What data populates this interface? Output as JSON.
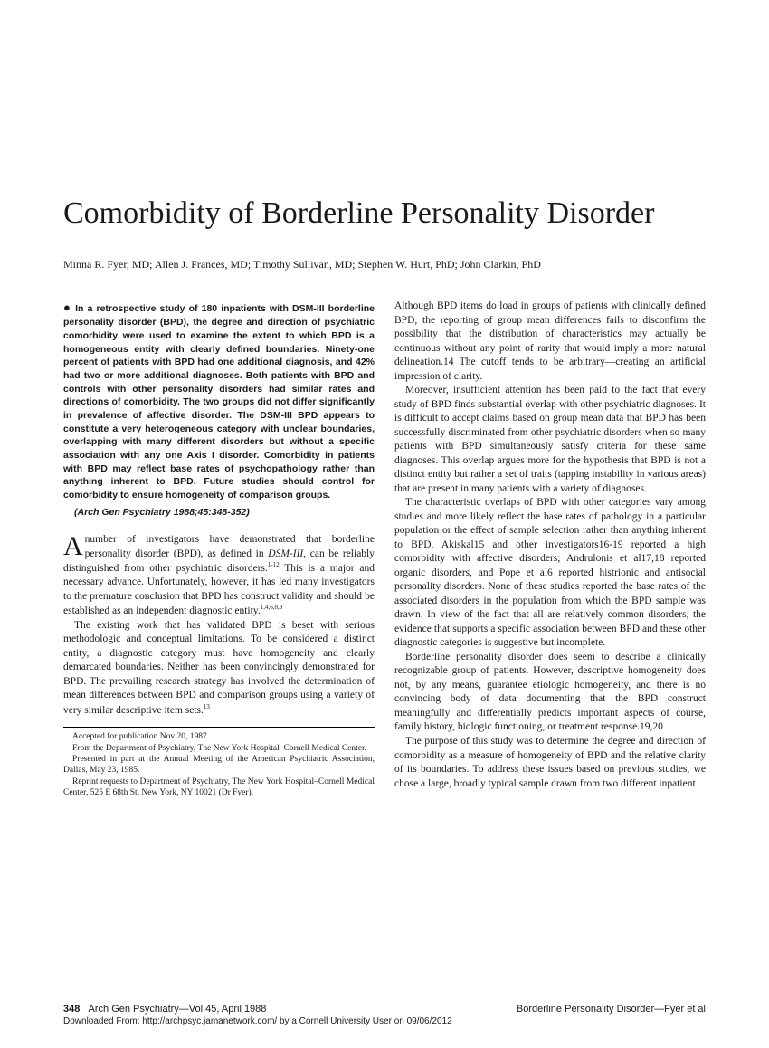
{
  "title": "Comorbidity of Borderline Personality Disorder",
  "authors": "Minna R. Fyer, MD; Allen J. Frances, MD; Timothy Sullivan, MD; Stephen W. Hurt, PhD; John Clarkin, PhD",
  "abstract": "In a retrospective study of 180 inpatients with DSM-III borderline personality disorder (BPD), the degree and direction of psychiatric comorbidity were used to examine the extent to which BPD is a homogeneous entity with clearly defined boundaries. Ninety-one percent of patients with BPD had one additional diagnosis, and 42% had two or more additional diagnoses. Both patients with BPD and controls with other personality disorders had similar rates and directions of comorbidity. The two groups did not differ significantly in prevalence of affective disorder. The DSM-III BPD appears to constitute a very heterogeneous category with unclear boundaries, overlapping with many different disorders but without a specific association with any one Axis I disorder. Comorbidity in patients with BPD may reflect base rates of psychopathology rather than anything inherent to BPD. Future studies should control for comorbidity to ensure homogeneity of comparison groups.",
  "citation": "(Arch Gen Psychiatry 1988;45:348-352)",
  "left_paras": {
    "p1a": "number of investigators have demonstrated that borderline personality disorder (BPD), as defined in ",
    "p1b": "DSM-III",
    "p1c": ", can be reliably distinguished from other psychiatric disorders.",
    "p1d": " This is a major and necessary advance. Unfortunately, however, it has led many investigators to the premature conclusion that BPD has construct validity and should be established as an independent diagnostic entity.",
    "p2": "The existing work that has validated BPD is beset with serious methodologic and conceptual limitations. To be considered a distinct entity, a diagnostic category must have homogeneity and clearly demarcated boundaries. Neither has been convincingly demonstrated for BPD. The prevailing research strategy has involved the determination of mean differences between BPD and comparison groups using a variety of very similar descriptive item sets."
  },
  "right_paras": {
    "p1": "Although BPD items do load in groups of patients with clinically defined BPD, the reporting of group mean differences fails to disconfirm the possibility that the distribution of characteristics may actually be continuous without any point of rarity that would imply a more natural delineation.14 The cutoff tends to be arbitrary—creating an artificial impression of clarity.",
    "p2": "Moreover, insufficient attention has been paid to the fact that every study of BPD finds substantial overlap with other psychiatric diagnoses. It is difficult to accept claims based on group mean data that BPD has been successfully discriminated from other psychiatric disorders when so many patients with BPD simultaneously satisfy criteria for these same diagnoses. This overlap argues more for the hypothesis that BPD is not a distinct entity but rather a set of traits (tapping instability in various areas) that are present in many patients with a variety of diagnoses.",
    "p3": "The characteristic overlaps of BPD with other categories vary among studies and more likely reflect the base rates of pathology in a particular population or the effect of sample selection rather than anything inherent to BPD. Akiskal15 and other investigators16-19 reported a high comorbidity with affective disorders; Andrulonis et al17,18 reported organic disorders, and Pope et al6 reported histrionic and antisocial personality disorders. None of these studies reported the base rates of the associated disorders in the population from which the BPD sample was drawn. In view of the fact that all are relatively common disorders, the evidence that supports a specific association between BPD and these other diagnostic categories is suggestive but incomplete.",
    "p4": "Borderline personality disorder does seem to describe a clinically recognizable group of patients. However, descriptive homogeneity does not, by any means, guarantee etiologic homogeneity, and there is no convincing body of data documenting that the BPD construct meaningfully and differentially predicts important aspects of course, family history, biologic functioning, or treatment response.19,20",
    "p5": "The purpose of this study was to determine the degree and direction of comorbidity as a measure of homogeneity of BPD and the relative clarity of its boundaries. To address these issues based on previous studies, we chose a large, broadly typical sample drawn from two different inpatient"
  },
  "footnotes": {
    "f1": "Accepted for publication Nov 20, 1987.",
    "f2": "From the Department of Psychiatry, The New York Hospital–Cornell Medical Center.",
    "f3": "Presented in part at the Annual Meeting of the American Psychiatric Association, Dallas, May 23, 1985.",
    "f4": "Reprint requests to Department of Psychiatry, The New York Hospital–Cornell Medical Center, 525 E 68th St, New York, NY 10021 (Dr Fyer)."
  },
  "footer": {
    "page": "348",
    "journal": "Arch Gen Psychiatry—Vol 45, April 1988",
    "right": "Borderline Personality Disorder—Fyer et al",
    "download": "Downloaded From: http://archpsyc.jamanetwork.com/ by a Cornell University User  on 09/06/2012"
  },
  "sup": {
    "s1": "1-12",
    "s2": "1,4,6,8,9",
    "s3": "13"
  }
}
